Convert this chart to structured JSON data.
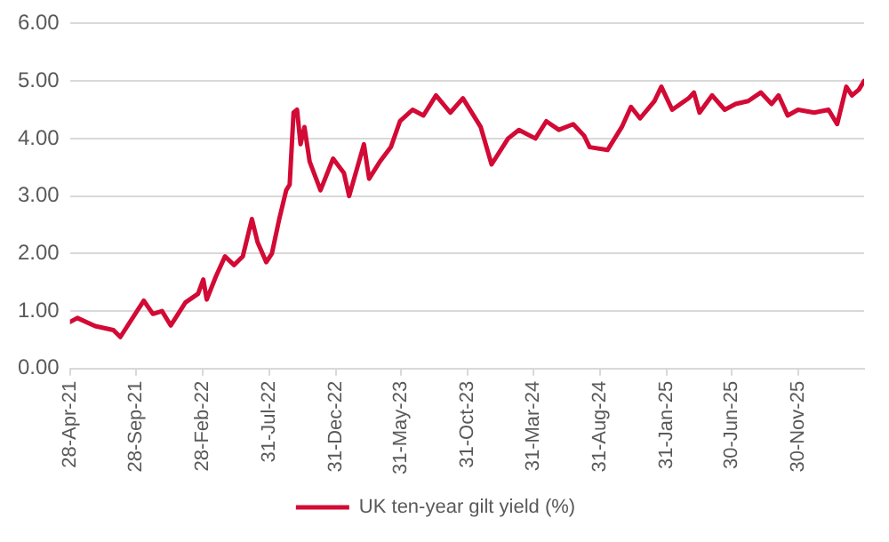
{
  "chart_data": {
    "type": "line",
    "legend": "bottom",
    "grid": "y",
    "marker": "none",
    "line_style": "solid",
    "ylim": [
      0,
      6
    ],
    "yticks": [
      {
        "value": 0,
        "label": "0.00"
      },
      {
        "value": 1,
        "label": "1.00"
      },
      {
        "value": 2,
        "label": "2.00"
      },
      {
        "value": 3,
        "label": "3.00"
      },
      {
        "value": 4,
        "label": "4.00"
      },
      {
        "value": 5,
        "label": "5.00"
      },
      {
        "value": 6,
        "label": "6.00"
      }
    ],
    "xlim": [
      "2021-04-28",
      "2026-05-01"
    ],
    "xticks": [
      {
        "value": "2021-04-28",
        "label": "28-Apr-21"
      },
      {
        "value": "2021-09-28",
        "label": "28-Sep-21"
      },
      {
        "value": "2022-02-28",
        "label": "28-Feb-22"
      },
      {
        "value": "2022-07-31",
        "label": "31-Jul-22"
      },
      {
        "value": "2022-12-31",
        "label": "31-Dec-22"
      },
      {
        "value": "2023-05-31",
        "label": "31-May-23"
      },
      {
        "value": "2023-10-31",
        "label": "31-Oct-23"
      },
      {
        "value": "2024-03-31",
        "label": "31-Mar-24"
      },
      {
        "value": "2024-08-31",
        "label": "31-Aug-24"
      },
      {
        "value": "2025-01-31",
        "label": "31-Jan-25"
      },
      {
        "value": "2025-06-30",
        "label": "30-Jun-25"
      },
      {
        "value": "2025-11-30",
        "label": "30-Nov-25"
      }
    ],
    "x": [
      "2021-04-28",
      "2021-05-15",
      "2021-06-25",
      "2021-08-06",
      "2021-08-22",
      "2021-10-15",
      "2021-11-05",
      "2021-11-26",
      "2021-12-16",
      "2022-01-19",
      "2022-02-17",
      "2022-03-01",
      "2022-03-09",
      "2022-03-30",
      "2022-04-20",
      "2022-05-11",
      "2022-05-31",
      "2022-06-21",
      "2022-07-04",
      "2022-07-24",
      "2022-08-06",
      "2022-08-23",
      "2022-09-08",
      "2022-09-16",
      "2022-09-25",
      "2022-10-03",
      "2022-10-11",
      "2022-10-20",
      "2022-11-01",
      "2022-11-26",
      "2022-12-25",
      "2023-01-19",
      "2023-01-31",
      "2023-03-06",
      "2023-03-18",
      "2023-04-12",
      "2023-05-07",
      "2023-05-28",
      "2023-06-26",
      "2023-07-21",
      "2023-08-19",
      "2023-09-21",
      "2023-10-20",
      "2023-11-30",
      "2023-12-25",
      "2024-02-01",
      "2024-02-26",
      "2024-04-04",
      "2024-04-29",
      "2024-05-28",
      "2024-06-30",
      "2024-07-25",
      "2024-08-07",
      "2024-09-17",
      "2024-10-20",
      "2024-11-10",
      "2024-12-01",
      "2025-01-03",
      "2025-01-19",
      "2025-02-13",
      "2025-03-23",
      "2025-04-04",
      "2025-04-17",
      "2025-05-16",
      "2025-06-14",
      "2025-07-09",
      "2025-08-07",
      "2025-09-05",
      "2025-09-30",
      "2025-10-16",
      "2025-11-06",
      "2025-11-30",
      "2026-01-06",
      "2026-02-08",
      "2026-02-28",
      "2026-03-21",
      "2026-04-03",
      "2026-04-19",
      "2026-05-01"
    ],
    "series": [
      {
        "name": "UK ten-year gilt yield (%)",
        "color": "#d20a35",
        "values": [
          0.81,
          0.88,
          0.74,
          0.67,
          0.55,
          1.18,
          0.95,
          1.0,
          0.75,
          1.15,
          1.3,
          1.55,
          1.2,
          1.6,
          1.95,
          1.8,
          1.95,
          2.6,
          2.2,
          1.85,
          2.0,
          2.6,
          3.1,
          3.2,
          4.45,
          4.5,
          3.9,
          4.2,
          3.6,
          3.1,
          3.65,
          3.4,
          3.0,
          3.9,
          3.3,
          3.6,
          3.85,
          4.3,
          4.5,
          4.4,
          4.75,
          4.45,
          4.7,
          4.2,
          3.55,
          4.0,
          4.15,
          4.0,
          4.3,
          4.15,
          4.25,
          4.05,
          3.85,
          3.8,
          4.2,
          4.55,
          4.35,
          4.65,
          4.9,
          4.5,
          4.7,
          4.8,
          4.45,
          4.75,
          4.5,
          4.6,
          4.65,
          4.8,
          4.6,
          4.75,
          4.4,
          4.5,
          4.45,
          4.5,
          4.25,
          4.9,
          4.75,
          4.85,
          5.0
        ]
      }
    ]
  }
}
